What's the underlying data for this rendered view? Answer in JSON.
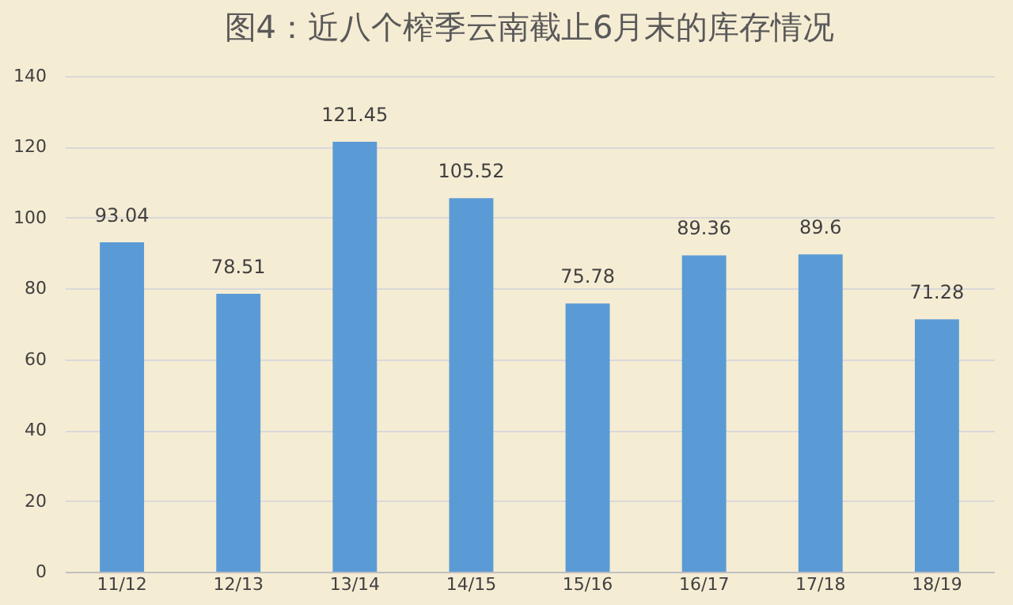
{
  "chart_data": {
    "type": "bar",
    "title": "图4：近八个榨季云南截止6月末的库存情况",
    "categories": [
      "11/12",
      "12/13",
      "13/14",
      "14/15",
      "15/16",
      "16/17",
      "17/18",
      "18/19"
    ],
    "values": [
      93.04,
      78.51,
      121.45,
      105.52,
      75.78,
      89.36,
      89.6,
      71.28
    ],
    "color": "#5b9bd5",
    "ylim": [
      0,
      140
    ],
    "yticks": [
      0,
      20,
      40,
      60,
      80,
      100,
      120,
      140
    ],
    "grid": "y",
    "data_labels": true
  }
}
